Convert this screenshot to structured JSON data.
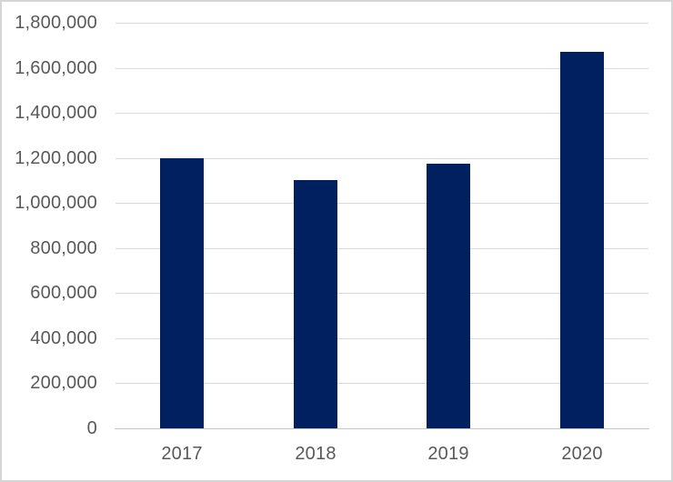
{
  "chart_data": {
    "type": "bar",
    "title": "",
    "xlabel": "",
    "ylabel": "",
    "categories": [
      "2017",
      "2018",
      "2019",
      "2020"
    ],
    "series": [
      {
        "name": "",
        "values": [
          1200000,
          1100000,
          1175000,
          1670000
        ]
      }
    ],
    "ylim": [
      0,
      1800000
    ],
    "y_tick_interval": 200000,
    "y_tick_labels": [
      "0",
      "200,000",
      "400,000",
      "600,000",
      "800,000",
      "1,000,000",
      "1,200,000",
      "1,400,000",
      "1,600,000",
      "1,800,000"
    ],
    "grid": true,
    "legend": false,
    "colors": {
      "bar": "#002060",
      "gridline": "#d9d9d9",
      "axis_line": "#c6c6c6",
      "tick_label": "#595959",
      "background": "#ffffff",
      "frame_border": "#d5d5d5"
    }
  }
}
